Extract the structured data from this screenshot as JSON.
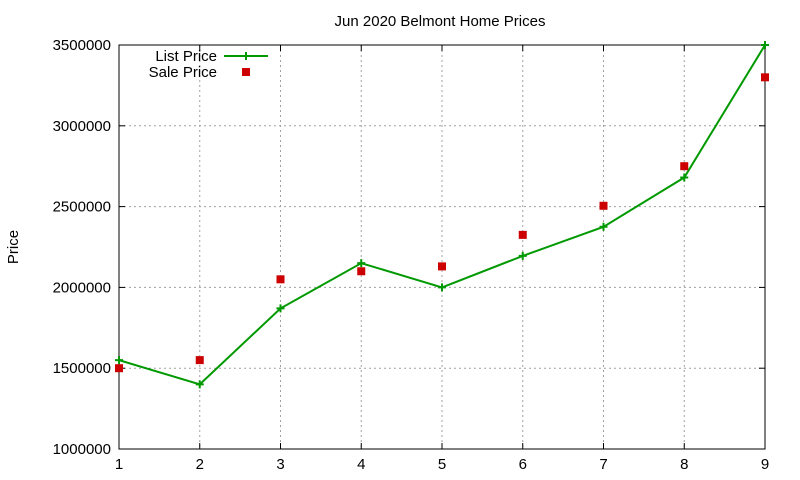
{
  "chart_data": {
    "type": "line",
    "title": "Jun 2020 Belmont Home Prices",
    "xlabel": "",
    "ylabel": "Price",
    "xlim": [
      1,
      9
    ],
    "ylim": [
      1000000,
      3500000
    ],
    "x_ticks": [
      "1",
      "2",
      "3",
      "4",
      "5",
      "6",
      "7",
      "8",
      "9"
    ],
    "y_ticks": [
      "1000000",
      "1500000",
      "2000000",
      "2500000",
      "3000000",
      "3500000"
    ],
    "grid": true,
    "legend_position": "top-left",
    "x": [
      1,
      2,
      3,
      4,
      5,
      6,
      7,
      8,
      9
    ],
    "series": [
      {
        "name": "List Price",
        "style": "line-with-plus-markers",
        "color": "#009900",
        "values": [
          1550000,
          1400000,
          1870000,
          2150000,
          2000000,
          2195000,
          2375000,
          2680000,
          3500000
        ]
      },
      {
        "name": "Sale Price",
        "style": "square-markers",
        "color": "#cc0000",
        "values": [
          1500000,
          1550000,
          2050000,
          2100000,
          2130000,
          2325000,
          2505000,
          2750000,
          3300000
        ]
      }
    ]
  }
}
